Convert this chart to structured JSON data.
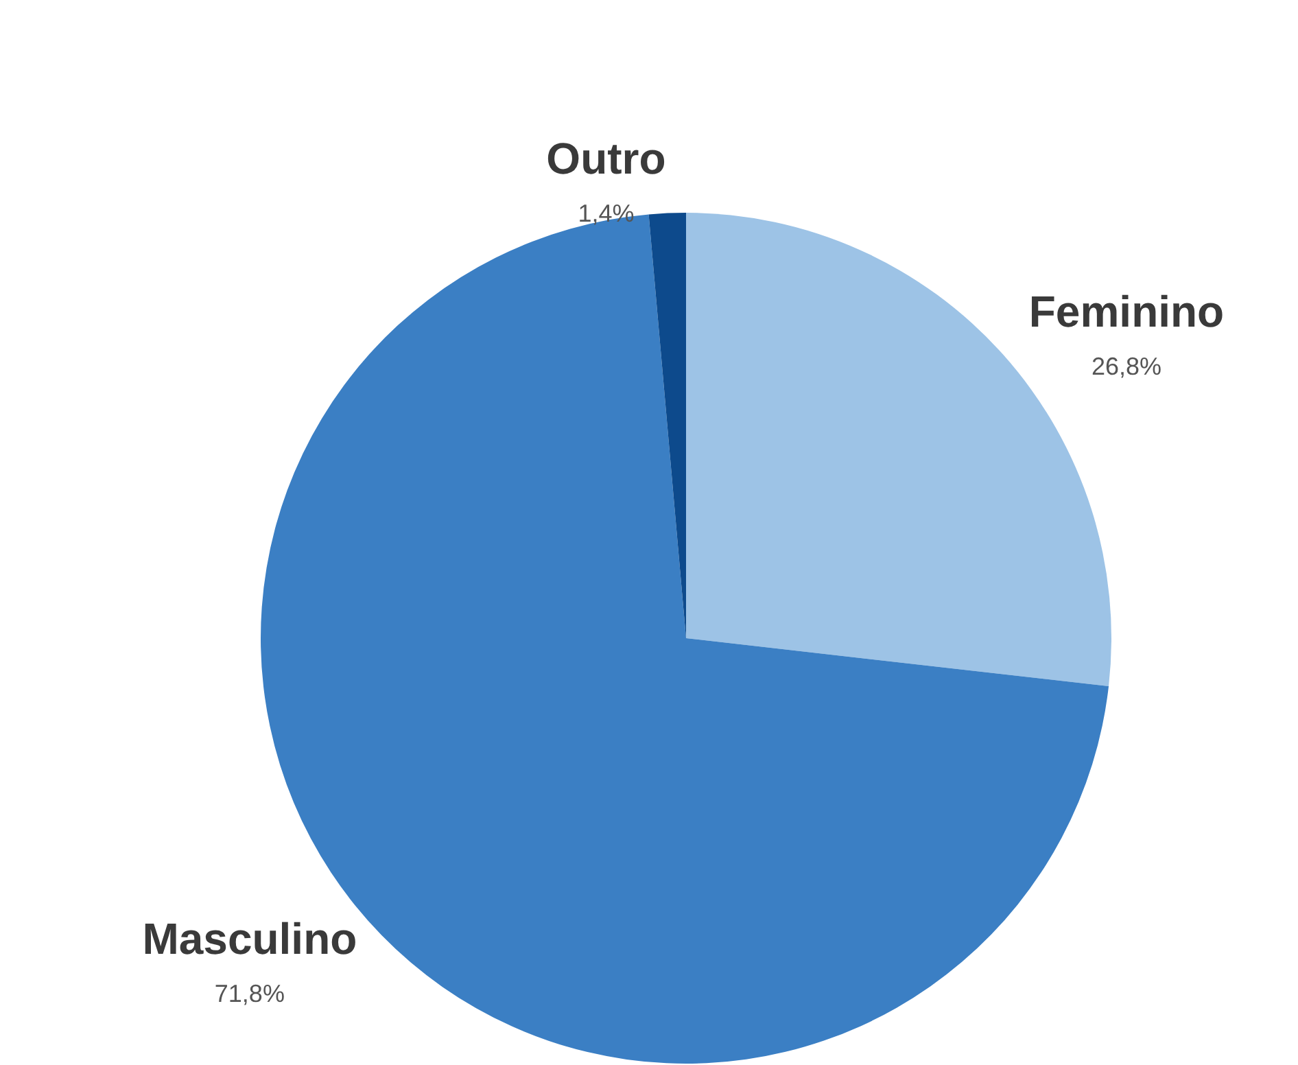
{
  "chart_data": {
    "type": "pie",
    "categories": [
      "Feminino",
      "Masculino",
      "Outro"
    ],
    "values": [
      26.8,
      71.8,
      1.4
    ],
    "colors": [
      "#9dc3e6",
      "#3b7fc4",
      "#0d4a8c"
    ],
    "value_labels": [
      "26,8%",
      "71,8%",
      "1,4%"
    ],
    "legend": false
  }
}
